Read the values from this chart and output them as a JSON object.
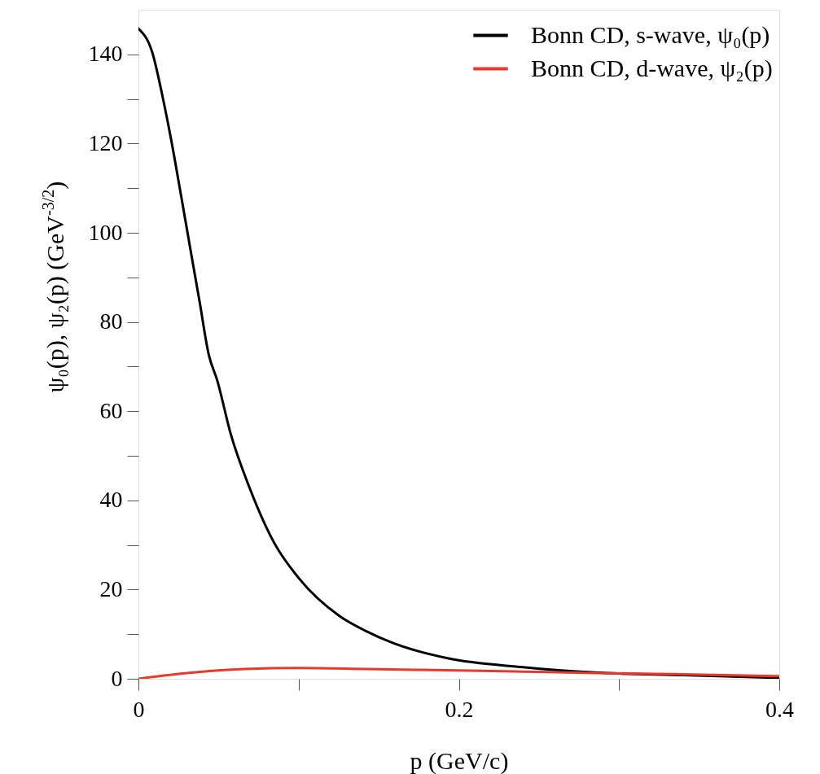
{
  "chart_data": {
    "type": "line",
    "xlabel": "p    (GeV/c)",
    "ylabel": "ψ₀(p),  ψ₂(p)    (GeV$^{-3/2}$)",
    "xlim": [
      0,
      0.4
    ],
    "xticks": [
      0,
      {
        "value": 0.1,
        "label": null
      },
      0.2,
      {
        "value": 0.3,
        "label": null
      },
      0.4
    ],
    "ylim": [
      0,
      150
    ],
    "yticks": [
      0,
      {
        "value": 10,
        "label": null
      },
      20,
      {
        "value": 30,
        "label": null
      },
      40,
      {
        "value": 50,
        "label": null
      },
      60,
      {
        "value": 70,
        "label": null
      },
      80,
      {
        "value": 90,
        "label": null
      },
      100,
      {
        "value": 110,
        "label": null
      },
      120,
      {
        "value": 130,
        "label": null
      },
      140
    ],
    "grid": false,
    "legend": "top right",
    "line_style": "solid",
    "marker": "none",
    "series": [
      {
        "name": "Bonn CD, s-wave, ψ₀(p)",
        "color": "#000000",
        "x": [
          0,
          0.0085,
          0.0152,
          0.0203,
          0.0263,
          0.0322,
          0.0381,
          0.044,
          0.0491,
          0.0576,
          0.0695,
          0.0847,
          0.1,
          0.1254,
          0.142,
          0.159,
          0.193,
          0.24,
          0.285,
          0.34,
          0.4
        ],
        "values": [
          145.8,
          140.6,
          130.3,
          121.1,
          109,
          96.8,
          84.7,
          72.5,
          67,
          54.9,
          42.7,
          30.5,
          22.6,
          14.1,
          10.7,
          8.0,
          4.6,
          2.6,
          1.4,
          0.8,
          0.2
        ]
      },
      {
        "name": "Bonn CD, d-wave, ψ₂(p)",
        "color": "#e8392a",
        "x": [
          0,
          0.015,
          0.04,
          0.066,
          0.1,
          0.142,
          0.193,
          0.24,
          0.285,
          0.34,
          0.4
        ],
        "values": [
          0,
          0.7,
          1.6,
          2.2,
          2.4,
          2.2,
          1.9,
          1.6,
          1.3,
          1.0,
          0.6
        ]
      }
    ]
  }
}
